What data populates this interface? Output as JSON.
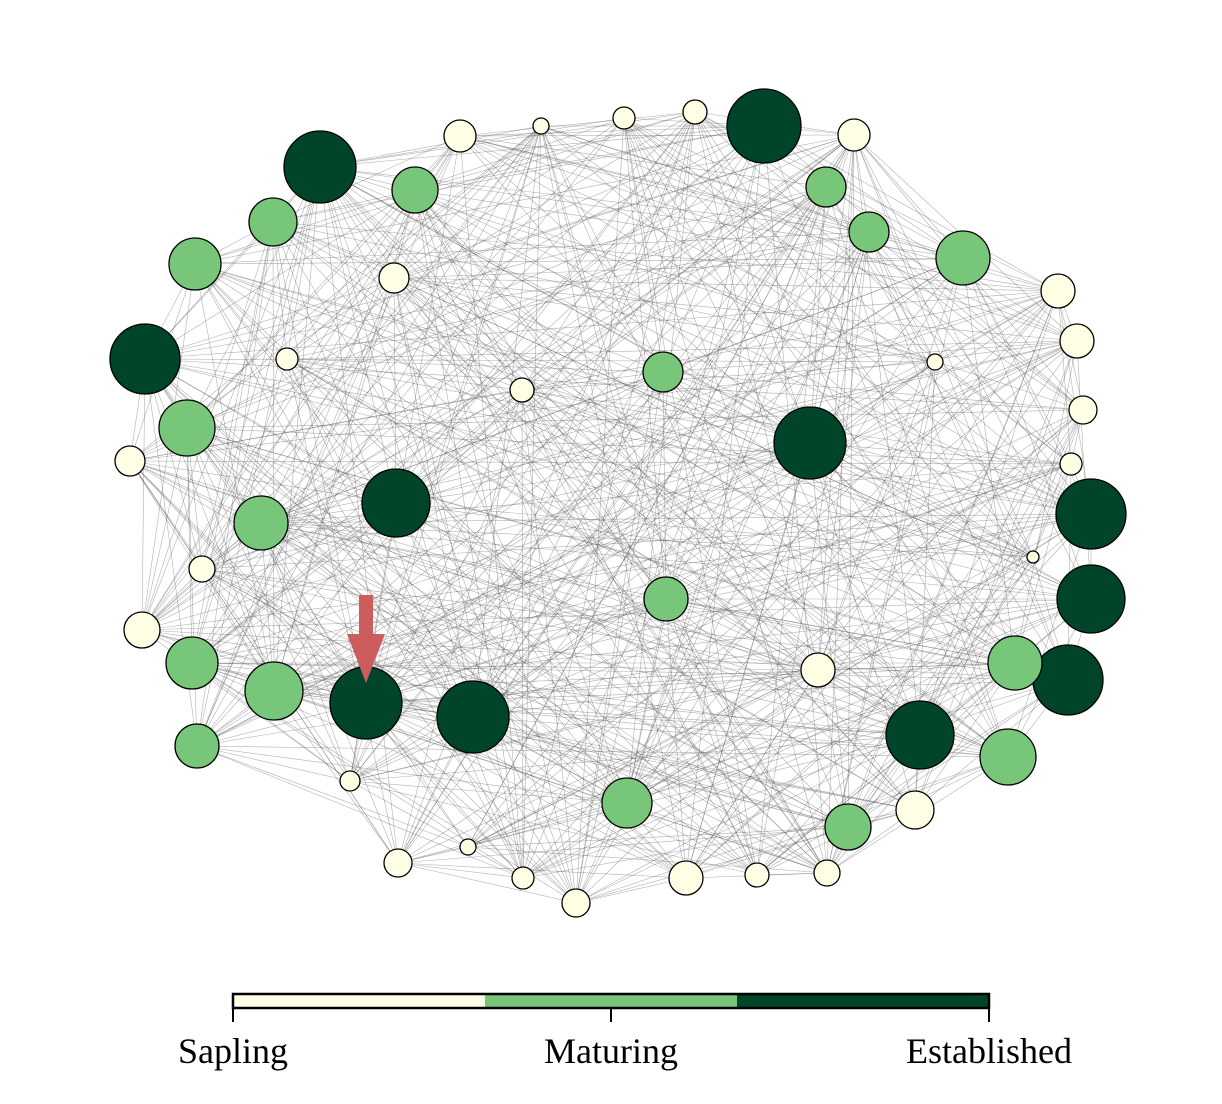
{
  "legend": {
    "stages": [
      {
        "label": "Sapling",
        "color": "#ffffe5"
      },
      {
        "label": "Maturing",
        "color": "#78c679"
      },
      {
        "label": "Established",
        "color": "#004529"
      }
    ]
  },
  "colors": {
    "sapling": "#ffffe5",
    "maturing": "#78c679",
    "established": "#004529",
    "marker": "#cd5c5c"
  },
  "marker": {
    "points_to_node": 1
  }
}
